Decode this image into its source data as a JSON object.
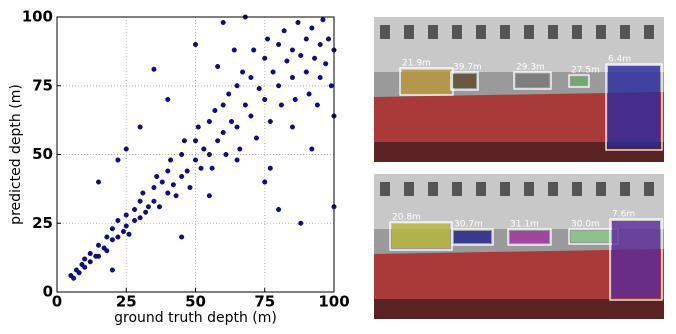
{
  "chart_data": {
    "type": "scatter",
    "x_label": "ground truth depth (m)",
    "y_label": "predicted depth (m)",
    "color": "#0a0a9a",
    "grid": true,
    "xlim": [
      0,
      100
    ],
    "ylim": [
      0,
      100
    ],
    "xticks": [
      0,
      25,
      50,
      75,
      100
    ],
    "yticks": [
      0,
      25,
      50,
      75,
      100
    ],
    "x": [
      5,
      6,
      7,
      8,
      9,
      10,
      10,
      12,
      12,
      14,
      15,
      15,
      17,
      18,
      18,
      20,
      20,
      22,
      22,
      24,
      25,
      25,
      26,
      28,
      28,
      30,
      30,
      31,
      32,
      33,
      35,
      35,
      36,
      37,
      38,
      40,
      40,
      41,
      42,
      43,
      45,
      45,
      46,
      47,
      48,
      50,
      50,
      51,
      52,
      53,
      55,
      55,
      56,
      57,
      58,
      60,
      60,
      61,
      62,
      63,
      65,
      65,
      66,
      67,
      68,
      70,
      70,
      71,
      72,
      73,
      75,
      75,
      76,
      77,
      78,
      80,
      80,
      81,
      82,
      83,
      85,
      85,
      86,
      87,
      88,
      90,
      90,
      91,
      92,
      93,
      95,
      95,
      96,
      97,
      98,
      99,
      100,
      22,
      25,
      35,
      15,
      40,
      50,
      60,
      68,
      30,
      20,
      45,
      55,
      75,
      80,
      100,
      88,
      65,
      77,
      92,
      85,
      100,
      94,
      58,
      64
    ],
    "y": [
      6,
      5,
      8,
      7,
      10,
      9,
      12,
      11,
      14,
      13,
      17,
      13,
      16,
      20,
      15,
      19,
      23,
      20,
      26,
      22,
      28,
      24,
      21,
      30,
      26,
      33,
      27,
      36,
      29,
      31,
      38,
      33,
      42,
      31,
      40,
      44,
      36,
      48,
      39,
      35,
      50,
      42,
      55,
      44,
      38,
      55,
      48,
      60,
      45,
      52,
      62,
      50,
      45,
      66,
      55,
      68,
      58,
      50,
      72,
      62,
      75,
      60,
      52,
      80,
      68,
      78,
      64,
      88,
      56,
      74,
      85,
      70,
      92,
      62,
      80,
      90,
      75,
      68,
      95,
      84,
      88,
      78,
      70,
      98,
      86,
      92,
      80,
      72,
      96,
      85,
      90,
      78,
      99,
      83,
      92,
      75,
      88,
      48,
      52,
      81,
      40,
      70,
      90,
      98,
      100,
      60,
      8,
      20,
      35,
      40,
      30,
      31,
      25,
      48,
      45,
      52,
      60,
      64,
      68,
      82,
      88
    ]
  },
  "images": [
    {
      "labels": [
        "21.9m",
        "39.7m",
        "29.3m",
        "27.5m",
        "6.4m"
      ]
    },
    {
      "labels": [
        "20.8m",
        "30.7m",
        "31.1m",
        "30.0m",
        "7.6m"
      ]
    }
  ]
}
